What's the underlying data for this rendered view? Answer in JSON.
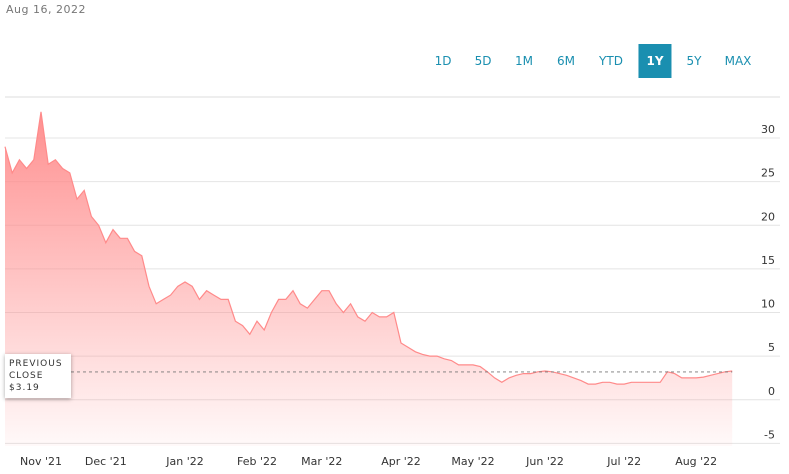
{
  "date": "Aug 16, 2022",
  "ranges": [
    "1D",
    "5D",
    "1M",
    "6M",
    "YTD",
    "1Y",
    "5Y",
    "MAX"
  ],
  "active_range": "1Y",
  "chart_data": {
    "type": "area",
    "color": "#ff8a8a",
    "categories": [
      null,
      null,
      null,
      null,
      null,
      "Nov '21",
      null,
      null,
      null,
      null,
      null,
      null,
      null,
      null,
      "Dec '21",
      null,
      null,
      null,
      null,
      null,
      null,
      null,
      null,
      null,
      null,
      "Jan '22",
      null,
      null,
      null,
      null,
      null,
      null,
      null,
      null,
      null,
      "Feb '22",
      null,
      null,
      null,
      null,
      null,
      null,
      null,
      null,
      "Mar '22",
      null,
      null,
      null,
      null,
      null,
      null,
      null,
      null,
      null,
      null,
      "Apr '22",
      null,
      null,
      null,
      null,
      null,
      null,
      null,
      null,
      null,
      "May '22",
      null,
      null,
      null,
      null,
      null,
      null,
      null,
      null,
      null,
      "Jun '22",
      null,
      null,
      null,
      null,
      null,
      null,
      null,
      null,
      null,
      null,
      "Jul '22",
      null,
      null,
      null,
      null,
      null,
      null,
      null,
      null,
      null,
      "Aug '22",
      null,
      null,
      null,
      null,
      null
    ],
    "values": [
      29,
      26,
      27.5,
      26.5,
      27.5,
      33,
      27,
      27.5,
      26.5,
      26,
      23,
      24,
      21,
      20,
      18,
      19.5,
      18.5,
      18.5,
      17,
      16.5,
      13,
      11,
      11.5,
      12,
      13,
      13.5,
      13,
      11.5,
      12.5,
      12,
      11.5,
      11.5,
      9,
      8.5,
      7.5,
      9,
      8,
      10,
      11.5,
      11.5,
      12.5,
      11,
      10.5,
      11.5,
      12.5,
      12.5,
      11,
      10,
      11,
      9.5,
      9,
      10,
      9.5,
      9.5,
      10,
      6.5,
      6,
      5.5,
      5.2,
      5,
      5,
      4.7,
      4.5,
      4,
      4,
      4,
      3.8,
      3.2,
      2.5,
      2,
      2.5,
      2.8,
      3,
      3,
      3.2,
      3.3,
      3.2,
      3,
      2.8,
      2.5,
      2.2,
      1.8,
      1.8,
      2,
      2,
      1.8,
      1.8,
      2,
      2,
      2,
      2,
      2,
      3.2,
      3,
      2.5,
      2.5,
      2.5,
      2.6,
      2.8,
      3,
      3.2,
      3.3
    ],
    "ylim": [
      -5.3,
      34.7
    ],
    "yticks": [
      -5,
      0,
      5,
      10,
      15,
      20,
      25,
      30
    ],
    "grid": true,
    "previous_close": {
      "value": 3.19,
      "label": "$3.19",
      "title": "PREVIOUS CLOSE"
    }
  }
}
